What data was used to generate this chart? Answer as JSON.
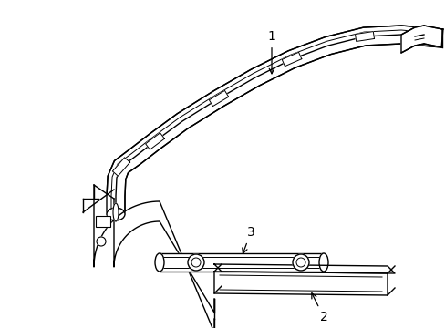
{
  "background_color": "#ffffff",
  "line_color": "#000000",
  "label_color": "#000000",
  "figsize": [
    4.89,
    3.6
  ],
  "dpi": 100
}
